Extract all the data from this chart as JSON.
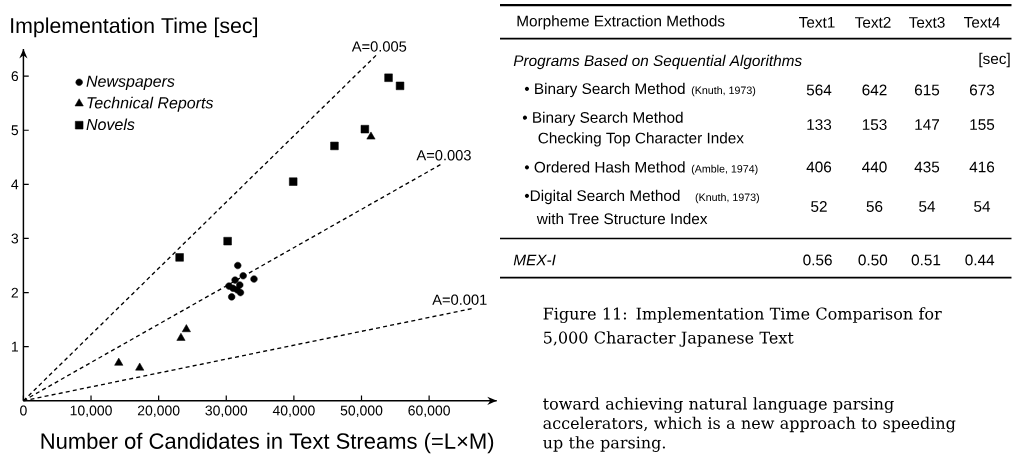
{
  "chart_data": [
    {
      "type": "scatter",
      "ylabel": "Implementation Time [sec]",
      "xlabel": "Number of Candidates in Text Streams (=L×M)",
      "xlim": [
        0,
        70000
      ],
      "ylim": [
        0,
        6.5
      ],
      "xticks": [
        0,
        {
          "value": 10000,
          "label": "10,000"
        },
        {
          "value": 20000,
          "label": "20,000"
        },
        {
          "value": 30000,
          "label": "30,000"
        },
        {
          "value": 40000,
          "label": "40,000"
        },
        {
          "value": 50000,
          "label": "50,000"
        },
        {
          "value": 60000,
          "label": "60,000"
        }
      ],
      "yticks": [
        1,
        2,
        3,
        4,
        5,
        6
      ],
      "legend": "top left",
      "series": [
        {
          "name": "Newspapers",
          "color": "#000000",
          "marker": "circle",
          "x": [
            31700,
            34100,
            32500,
            31300,
            30400,
            31000,
            32000,
            32100,
            30800,
            31600
          ],
          "values": [
            2.5,
            2.25,
            2.31,
            2.23,
            2.12,
            2.08,
            2.14,
            2.0,
            1.92,
            2.05
          ]
        },
        {
          "name": "Technical Reports",
          "color": "#000000",
          "marker": "triangle",
          "x": [
            51400,
            24100,
            23300,
            14100,
            17200
          ],
          "values": [
            4.88,
            1.32,
            1.16,
            0.7,
            0.61
          ]
        },
        {
          "name": "Novels",
          "color": "#000000",
          "marker": "square",
          "x": [
            54000,
            55700,
            50500,
            46000,
            39900,
            30200,
            23100
          ],
          "values": [
            5.97,
            5.82,
            5.02,
            4.71,
            4.05,
            2.95,
            2.65
          ]
        },
        {
          "type": "line",
          "name": "A=0.005",
          "color": "#000000",
          "line_style": "dashed",
          "x": [
            0,
            52200
          ],
          "values": [
            0,
            6.39
          ]
        },
        {
          "type": "line",
          "name": "A=0.003",
          "color": "#000000",
          "line_style": "dashed",
          "x": [
            0,
            61900
          ],
          "values": [
            0,
            4.38
          ]
        },
        {
          "type": "line",
          "name": "A=0.001",
          "color": "#000000",
          "line_style": "dashed",
          "x": [
            0,
            66600
          ],
          "values": [
            0,
            1.71
          ]
        }
      ]
    },
    {
      "type": "other",
      "annotations": [
        "Morpheme Extraction Methods",
        "Text1",
        "Text2",
        "Text3",
        "Text4",
        "Programs Based on Sequential Algorithms",
        "[sec]",
        "• Binary Search Method",
        "(Knuth, 1973)",
        "564",
        "642",
        "615",
        "673",
        "• Binary Search Method",
        "Checking Top Character Index",
        "133",
        "153",
        "147",
        "155",
        "• Ordered Hash Method",
        "(Amble, 1974)",
        "406",
        "440",
        "435",
        "416",
        "•Digital Search Method",
        "(Knuth, 1973)",
        "with Tree Structure Index",
        "52",
        "56",
        "54",
        "54",
        "MEX-I",
        "0.56",
        "0.50",
        "0.51",
        "0.44",
        "Figure 11: Implementation Time Comparison for 5,000 Character Japanese Text",
        "toward achieving natural language parsing accelerators, which is a new approach to speeding up the parsing."
      ]
    }
  ]
}
